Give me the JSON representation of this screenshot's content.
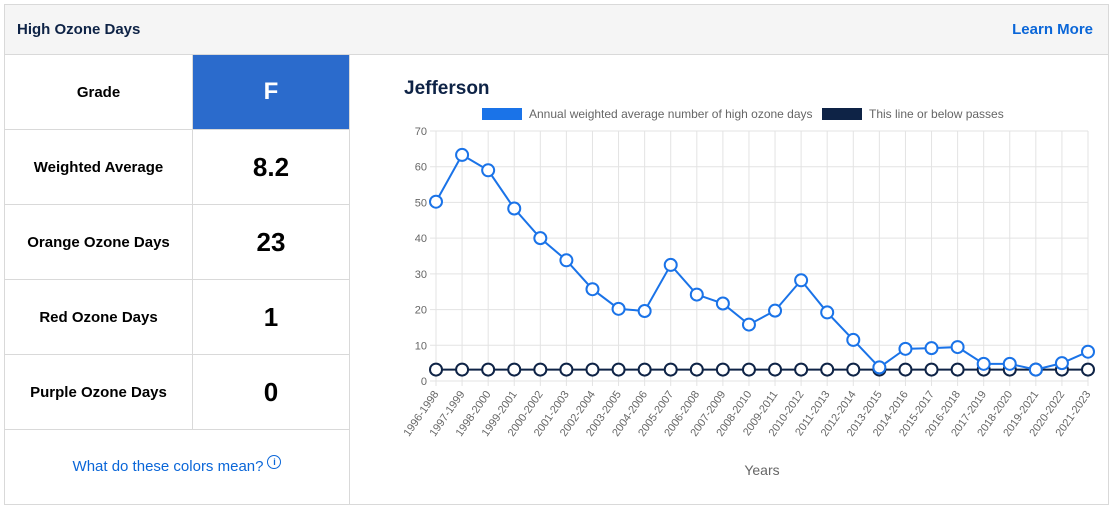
{
  "header": {
    "title": "High Ozone Days",
    "learn_more": "Learn More"
  },
  "stats": [
    {
      "label": "Grade",
      "value": "F"
    },
    {
      "label": "Weighted Average",
      "value": "8.2"
    },
    {
      "label": "Orange Ozone Days",
      "value": "23"
    },
    {
      "label": "Red Ozone Days",
      "value": "1"
    },
    {
      "label": "Purple Ozone Days",
      "value": "0"
    }
  ],
  "colors_link": "What do these colors mean?",
  "colors": {
    "accent": "#2b6bcc",
    "link": "#0a66d8",
    "series1": "#1a73e8",
    "series2": "#0e2346"
  },
  "chart_data": {
    "type": "line",
    "title": "Jefferson",
    "xlabel": "Years",
    "ylabel": "",
    "ylim": [
      0,
      70
    ],
    "yticks": [
      0,
      10,
      20,
      30,
      40,
      50,
      60,
      70
    ],
    "grid": true,
    "legend_position": "top",
    "x": [
      "1996-1998",
      "1997-1999",
      "1998-2000",
      "1999-2001",
      "2000-2002",
      "2001-2003",
      "2002-2004",
      "2003-2005",
      "2004-2006",
      "2005-2007",
      "2006-2008",
      "2007-2009",
      "2008-2010",
      "2009-2011",
      "2010-2012",
      "2011-2013",
      "2012-2014",
      "2013-2015",
      "2014-2016",
      "2015-2017",
      "2016-2018",
      "2017-2019",
      "2018-2020",
      "2019-2021",
      "2020-2022",
      "2021-2023"
    ],
    "series": [
      {
        "name": "Annual weighted average number of high ozone days",
        "color": "#1a73e8",
        "values": [
          50.2,
          63.3,
          59.0,
          48.3,
          40.0,
          33.8,
          25.7,
          20.2,
          19.6,
          32.5,
          24.2,
          21.7,
          15.8,
          19.7,
          28.2,
          19.2,
          11.5,
          3.8,
          9.0,
          9.2,
          9.5,
          4.8,
          4.8,
          3.2,
          5.0,
          8.2
        ]
      },
      {
        "name": "This line or below passes",
        "color": "#0e2346",
        "values": [
          3.2,
          3.2,
          3.2,
          3.2,
          3.2,
          3.2,
          3.2,
          3.2,
          3.2,
          3.2,
          3.2,
          3.2,
          3.2,
          3.2,
          3.2,
          3.2,
          3.2,
          3.2,
          3.2,
          3.2,
          3.2,
          3.2,
          3.2,
          3.2,
          3.2,
          3.2
        ]
      }
    ]
  }
}
